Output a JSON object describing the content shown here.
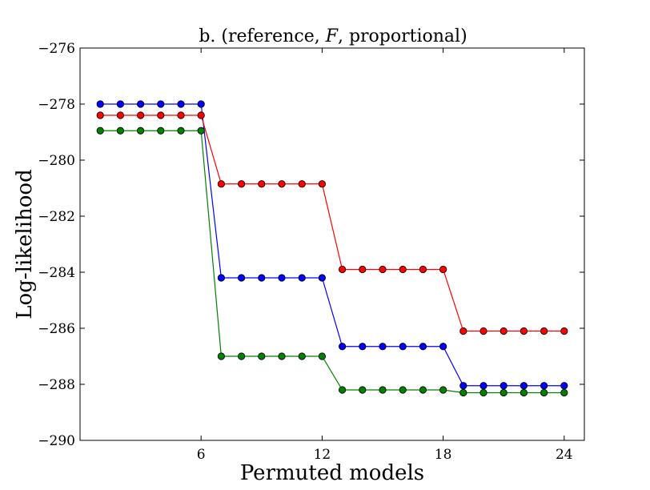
{
  "chart_data": {
    "type": "line",
    "title": "b.   (reference, F, proportional)",
    "xlabel": "Permuted models",
    "ylabel": "Log-likelihood",
    "xlim": [
      0,
      25
    ],
    "ylim": [
      -290,
      -276
    ],
    "xticks": [
      6,
      12,
      18,
      24
    ],
    "xtick_labels": [
      "6",
      "12",
      "18",
      "24"
    ],
    "yticks": [
      -290,
      -288,
      -286,
      -284,
      -282,
      -280,
      -278,
      -276
    ],
    "ytick_labels": [
      "−290",
      "−288",
      "−286",
      "−284",
      "−282",
      "−280",
      "−278",
      "−276"
    ],
    "grid": false,
    "x": [
      1,
      2,
      3,
      4,
      5,
      6,
      7,
      8,
      9,
      10,
      11,
      12,
      13,
      14,
      15,
      16,
      17,
      18,
      19,
      20,
      21,
      22,
      23,
      24
    ],
    "series": [
      {
        "color": "#0000ff",
        "values": [
          -278.0,
          -278.0,
          -278.0,
          -278.0,
          -278.0,
          -278.0,
          -284.2,
          -284.2,
          -284.2,
          -284.2,
          -284.2,
          -284.2,
          -286.65,
          -286.65,
          -286.65,
          -286.65,
          -286.65,
          -286.65,
          -288.05,
          -288.05,
          -288.05,
          -288.05,
          -288.05,
          -288.05
        ]
      },
      {
        "color": "#ff0000",
        "values": [
          -278.4,
          -278.4,
          -278.4,
          -278.4,
          -278.4,
          -278.4,
          -280.85,
          -280.85,
          -280.85,
          -280.85,
          -280.85,
          -280.85,
          -283.9,
          -283.9,
          -283.9,
          -283.9,
          -283.9,
          -283.9,
          -286.1,
          -286.1,
          -286.1,
          -286.1,
          -286.1,
          -286.1
        ]
      },
      {
        "color": "#008000",
        "values": [
          -278.95,
          -278.95,
          -278.95,
          -278.95,
          -278.95,
          -278.95,
          -287.0,
          -287.0,
          -287.0,
          -287.0,
          -287.0,
          -287.0,
          -288.2,
          -288.2,
          -288.2,
          -288.2,
          -288.2,
          -288.2,
          -288.3,
          -288.3,
          -288.3,
          -288.3,
          -288.3,
          -288.3
        ]
      }
    ]
  }
}
